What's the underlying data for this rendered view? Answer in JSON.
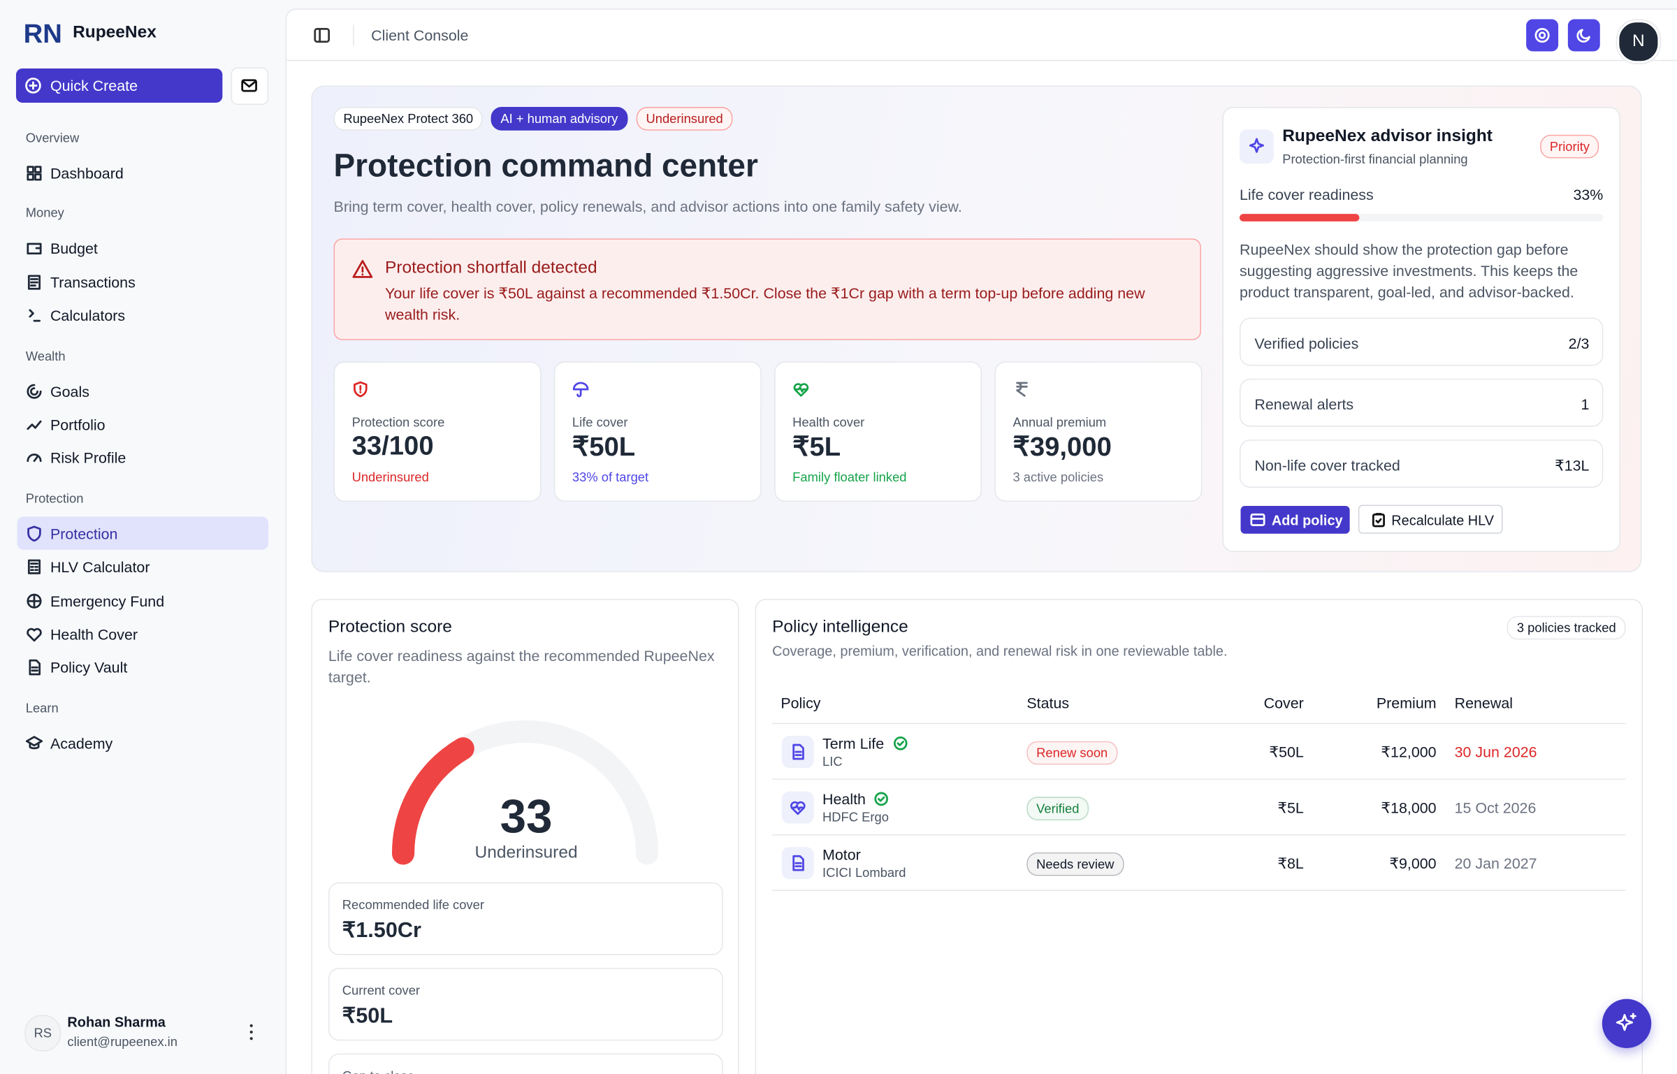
{
  "brand": "RupeeNex",
  "sidebar": {
    "quick_create": "Quick Create",
    "sections": [
      {
        "title": "Overview",
        "items": [
          "Dashboard"
        ]
      },
      {
        "title": "Money",
        "items": [
          "Budget",
          "Transactions",
          "Calculators"
        ]
      },
      {
        "title": "Wealth",
        "items": [
          "Goals",
          "Portfolio",
          "Risk Profile"
        ]
      },
      {
        "title": "Protection",
        "items": [
          "Protection",
          "HLV Calculator",
          "Emergency Fund",
          "Health Cover",
          "Policy Vault"
        ]
      },
      {
        "title": "Learn",
        "items": [
          "Academy"
        ]
      }
    ],
    "user": {
      "initials": "RS",
      "name": "Rohan Sharma",
      "email": "client@rupeenex.in"
    }
  },
  "topbar": {
    "title": "Client Console",
    "avatar": "N"
  },
  "hero": {
    "badges": [
      "RupeeNex Protect 360",
      "AI + human advisory",
      "Underinsured"
    ],
    "title": "Protection command center",
    "subtitle": "Bring term cover, health cover, policy renewals, and advisor actions into one family safety view.",
    "alert": {
      "title": "Protection shortfall detected",
      "text": "Your life cover is ₹50L against a recommended ₹1.50Cr. Close the ₹1Cr gap with a term top-up before adding new wealth risk."
    },
    "stats": [
      {
        "label": "Protection score",
        "value": "33/100",
        "note": "Underinsured",
        "color": "#dc2626"
      },
      {
        "label": "Life cover",
        "value": "₹50L",
        "note": "33% of target",
        "color": "#4f46e5"
      },
      {
        "label": "Health cover",
        "value": "₹5L",
        "note": "Family floater linked",
        "color": "#16a34a"
      },
      {
        "label": "Annual premium",
        "value": "₹39,000",
        "note": "3 active policies",
        "color": "#6b7280"
      }
    ]
  },
  "insight": {
    "title": "RupeeNex advisor insight",
    "subtitle": "Protection-first financial planning",
    "badge": "Priority",
    "readiness": {
      "label": "Life cover readiness",
      "value": 33,
      "value_label": "33%"
    },
    "text": "RupeeNex should show the protection gap before suggesting aggressive investments. This keeps the product transparent, goal-led, and advisor-backed.",
    "rows": [
      {
        "label": "Verified policies",
        "value": "2/3"
      },
      {
        "label": "Renewal alerts",
        "value": "1"
      },
      {
        "label": "Non-life cover tracked",
        "value": "₹13L"
      }
    ],
    "buttons": [
      "Add policy",
      "Recalculate HLV"
    ]
  },
  "score_card": {
    "title": "Protection score",
    "subtitle": "Life cover readiness against the recommended RupeeNex target.",
    "gauge": {
      "value": 33,
      "max": 100,
      "label": "Underinsured"
    },
    "boxes": [
      {
        "label": "Recommended life cover",
        "value": "₹1.50Cr"
      },
      {
        "label": "Current cover",
        "value": "₹50L"
      },
      {
        "label": "Gap to close"
      }
    ]
  },
  "policies": {
    "title": "Policy intelligence",
    "subtitle": "Coverage, premium, verification, and renewal risk in one reviewable table.",
    "badge": "3 policies tracked",
    "columns": [
      "Policy",
      "Status",
      "Cover",
      "Premium",
      "Renewal"
    ],
    "rows": [
      {
        "name": "Term Life",
        "insurer": "LIC",
        "verified": true,
        "status": "Renew soon",
        "status_color": "#dc2626",
        "cover": "₹50L",
        "premium": "₹12,000",
        "renewal": "30 Jun 2026",
        "renewal_color": "#dc2626"
      },
      {
        "name": "Health",
        "insurer": "HDFC Ergo",
        "verified": true,
        "status": "Verified",
        "status_color": "#15803d",
        "cover": "₹5L",
        "premium": "₹18,000",
        "renewal": "15 Oct 2026",
        "renewal_color": "#6b7280"
      },
      {
        "name": "Motor",
        "insurer": "ICICI Lombard",
        "verified": false,
        "status": "Needs review",
        "status_color": "#111827",
        "cover": "₹8L",
        "premium": "₹9,000",
        "renewal": "20 Jan 2027",
        "renewal_color": "#6b7280"
      }
    ]
  }
}
